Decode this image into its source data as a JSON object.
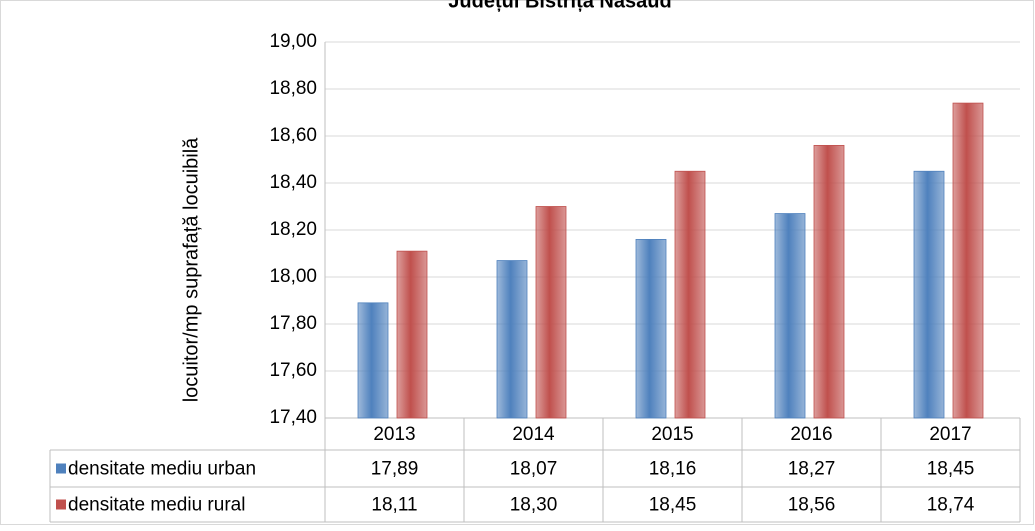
{
  "chart_data": {
    "type": "bar",
    "title": "Județul Bistrița Năsăud",
    "y_label": "locuitor/mp suprafață locuibilă",
    "categories": [
      "2013",
      "2014",
      "2015",
      "2016",
      "2017"
    ],
    "series": [
      {
        "name": "densitate mediu urban",
        "color": "#4f81bd",
        "values": [
          17.89,
          18.07,
          18.16,
          18.27,
          18.45
        ],
        "value_labels": [
          "17,89",
          "18,07",
          "18,16",
          "18,27",
          "18,45"
        ]
      },
      {
        "name": "densitate mediu rural",
        "color": "#c0504d",
        "values": [
          18.11,
          18.3,
          18.45,
          18.56,
          18.74
        ],
        "value_labels": [
          "18,11",
          "18,30",
          "18,45",
          "18,56",
          "18,74"
        ]
      }
    ],
    "ylim": [
      17.4,
      19.0
    ],
    "yticks": [
      {
        "value": 17.4,
        "label": "17,40"
      },
      {
        "value": 17.6,
        "label": "17,60"
      },
      {
        "value": 17.8,
        "label": "17,80"
      },
      {
        "value": 18.0,
        "label": "18,00"
      },
      {
        "value": 18.2,
        "label": "18,20"
      },
      {
        "value": 18.4,
        "label": "18,40"
      },
      {
        "value": 18.6,
        "label": "18,60"
      },
      {
        "value": 18.8,
        "label": "18,80"
      },
      {
        "value": 19.0,
        "label": "19,00"
      }
    ],
    "grid": true
  }
}
